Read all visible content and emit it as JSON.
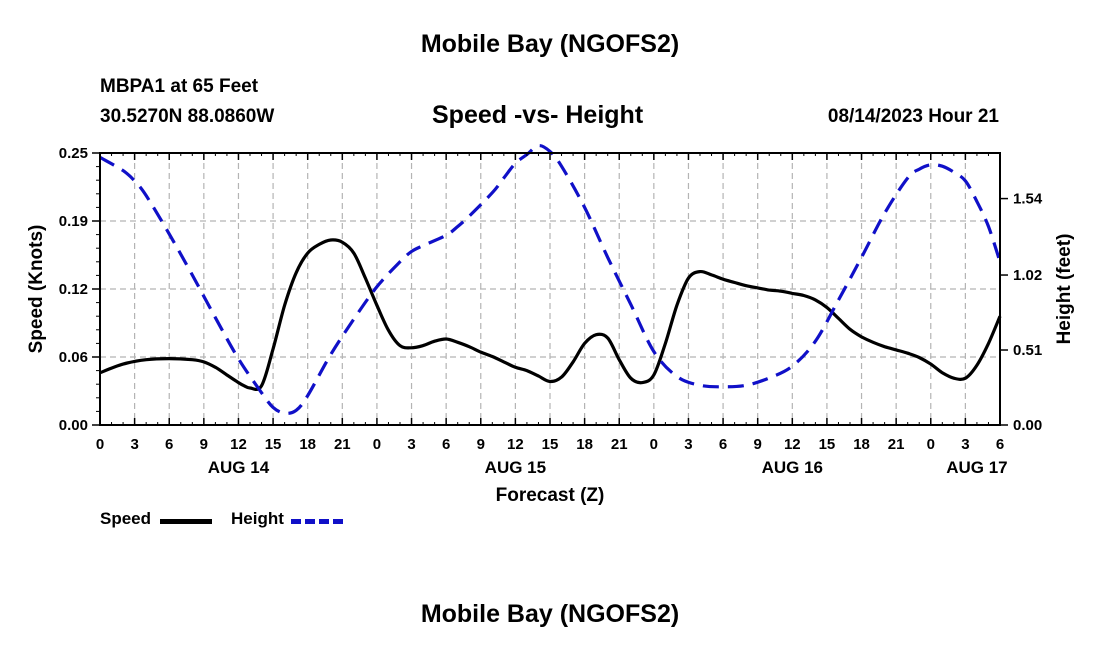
{
  "header": {
    "title_top": "Mobile Bay (NGOFS2)",
    "station": "MBPA1 at 65 Feet",
    "coords": "30.5270N  88.0860W",
    "subtitle": "Speed -vs- Height",
    "datetime": "08/14/2023 Hour 21"
  },
  "footer": {
    "title_bottom": "Mobile Bay (NGOFS2)"
  },
  "legend": {
    "speed_label": "Speed",
    "height_label": "Height"
  },
  "colors": {
    "speed": "#000000",
    "height": "#1010c8",
    "grid": "#b4b4b4"
  },
  "chart_data": {
    "type": "line",
    "title": "Speed -vs- Height",
    "xlabel": "Forecast (Z)",
    "ylabel": "Speed (Knots)",
    "y2label": "Height (feet)",
    "x_unit": "hours since 2023-08-14 00Z",
    "xlim": [
      0,
      78
    ],
    "ylim": [
      0,
      0.25
    ],
    "y2lim": [
      0,
      1.85
    ],
    "yticks": [
      "0.00",
      "0.06",
      "0.12",
      "0.19",
      "0.25"
    ],
    "ytick_values": [
      0,
      0.0625,
      0.125,
      0.1875,
      0.25
    ],
    "y2ticks": [
      "0.00",
      "0.51",
      "1.02",
      "1.54"
    ],
    "y2tick_values": [
      0,
      0.51,
      1.02,
      1.54
    ],
    "xticks": [
      {
        "x": 0,
        "label": "0"
      },
      {
        "x": 3,
        "label": "3"
      },
      {
        "x": 6,
        "label": "6"
      },
      {
        "x": 9,
        "label": "9"
      },
      {
        "x": 12,
        "label": "12"
      },
      {
        "x": 15,
        "label": "15"
      },
      {
        "x": 18,
        "label": "18"
      },
      {
        "x": 21,
        "label": "21"
      },
      {
        "x": 24,
        "label": "0"
      },
      {
        "x": 27,
        "label": "3"
      },
      {
        "x": 30,
        "label": "6"
      },
      {
        "x": 33,
        "label": "9"
      },
      {
        "x": 36,
        "label": "12"
      },
      {
        "x": 39,
        "label": "15"
      },
      {
        "x": 42,
        "label": "18"
      },
      {
        "x": 45,
        "label": "21"
      },
      {
        "x": 48,
        "label": "0"
      },
      {
        "x": 51,
        "label": "3"
      },
      {
        "x": 54,
        "label": "6"
      },
      {
        "x": 57,
        "label": "9"
      },
      {
        "x": 60,
        "label": "12"
      },
      {
        "x": 63,
        "label": "15"
      },
      {
        "x": 66,
        "label": "18"
      },
      {
        "x": 69,
        "label": "21"
      },
      {
        "x": 72,
        "label": "0"
      },
      {
        "x": 75,
        "label": "3"
      },
      {
        "x": 78,
        "label": "6"
      }
    ],
    "date_labels": [
      {
        "x": 12,
        "label": "AUG 14"
      },
      {
        "x": 36,
        "label": "AUG 15"
      },
      {
        "x": 60,
        "label": "AUG 16"
      },
      {
        "x": 76,
        "label": "AUG 17"
      }
    ],
    "series": [
      {
        "name": "Speed",
        "axis": "left",
        "x": [
          0,
          2,
          4,
          6,
          8,
          9,
          10,
          11,
          12,
          12.5,
          13,
          14,
          15,
          16,
          17,
          18,
          19,
          20,
          21,
          22,
          23,
          24,
          25,
          26,
          27,
          28,
          29,
          30,
          31,
          32,
          33,
          34,
          35,
          36,
          37,
          38,
          39,
          40,
          41,
          42,
          43,
          44,
          45,
          46,
          47,
          48,
          49,
          50,
          51,
          52,
          53,
          54,
          55,
          56,
          57,
          58,
          59,
          60,
          61,
          62,
          63,
          64,
          65,
          66,
          67,
          68,
          69,
          70,
          71,
          72,
          73,
          74,
          75,
          76,
          77,
          78
        ],
        "y": [
          0.048,
          0.056,
          0.06,
          0.061,
          0.06,
          0.058,
          0.053,
          0.046,
          0.039,
          0.036,
          0.034,
          0.036,
          0.07,
          0.11,
          0.14,
          0.158,
          0.166,
          0.17,
          0.168,
          0.158,
          0.135,
          0.11,
          0.087,
          0.073,
          0.071,
          0.073,
          0.077,
          0.079,
          0.076,
          0.072,
          0.067,
          0.063,
          0.058,
          0.053,
          0.05,
          0.045,
          0.04,
          0.044,
          0.058,
          0.075,
          0.083,
          0.08,
          0.06,
          0.043,
          0.039,
          0.046,
          0.075,
          0.11,
          0.135,
          0.141,
          0.138,
          0.134,
          0.131,
          0.128,
          0.126,
          0.124,
          0.123,
          0.121,
          0.119,
          0.115,
          0.108,
          0.098,
          0.088,
          0.081,
          0.076,
          0.072,
          0.069,
          0.066,
          0.062,
          0.056,
          0.048,
          0.043,
          0.043,
          0.055,
          0.075,
          0.1
        ]
      },
      {
        "name": "Height",
        "axis": "right",
        "x": [
          0,
          2,
          3,
          4,
          6,
          8,
          10,
          12,
          14,
          15,
          16,
          17,
          18,
          20,
          22,
          24,
          26,
          27,
          28,
          30,
          31,
          32,
          34,
          35,
          36,
          37,
          38,
          39,
          40,
          42,
          44,
          46,
          48,
          50,
          52,
          54,
          56,
          58,
          60,
          62,
          64,
          66,
          68,
          70,
          71,
          72,
          73,
          74,
          75,
          76,
          77,
          78
        ],
        "y": [
          1.82,
          1.73,
          1.66,
          1.56,
          1.3,
          1.02,
          0.73,
          0.45,
          0.22,
          0.12,
          0.08,
          0.1,
          0.2,
          0.48,
          0.72,
          0.94,
          1.11,
          1.18,
          1.22,
          1.29,
          1.35,
          1.42,
          1.58,
          1.68,
          1.78,
          1.84,
          1.9,
          1.86,
          1.76,
          1.48,
          1.14,
          0.82,
          0.5,
          0.33,
          0.27,
          0.26,
          0.27,
          0.32,
          0.4,
          0.57,
          0.85,
          1.14,
          1.44,
          1.68,
          1.74,
          1.77,
          1.76,
          1.72,
          1.66,
          1.52,
          1.35,
          1.11
        ]
      }
    ]
  }
}
